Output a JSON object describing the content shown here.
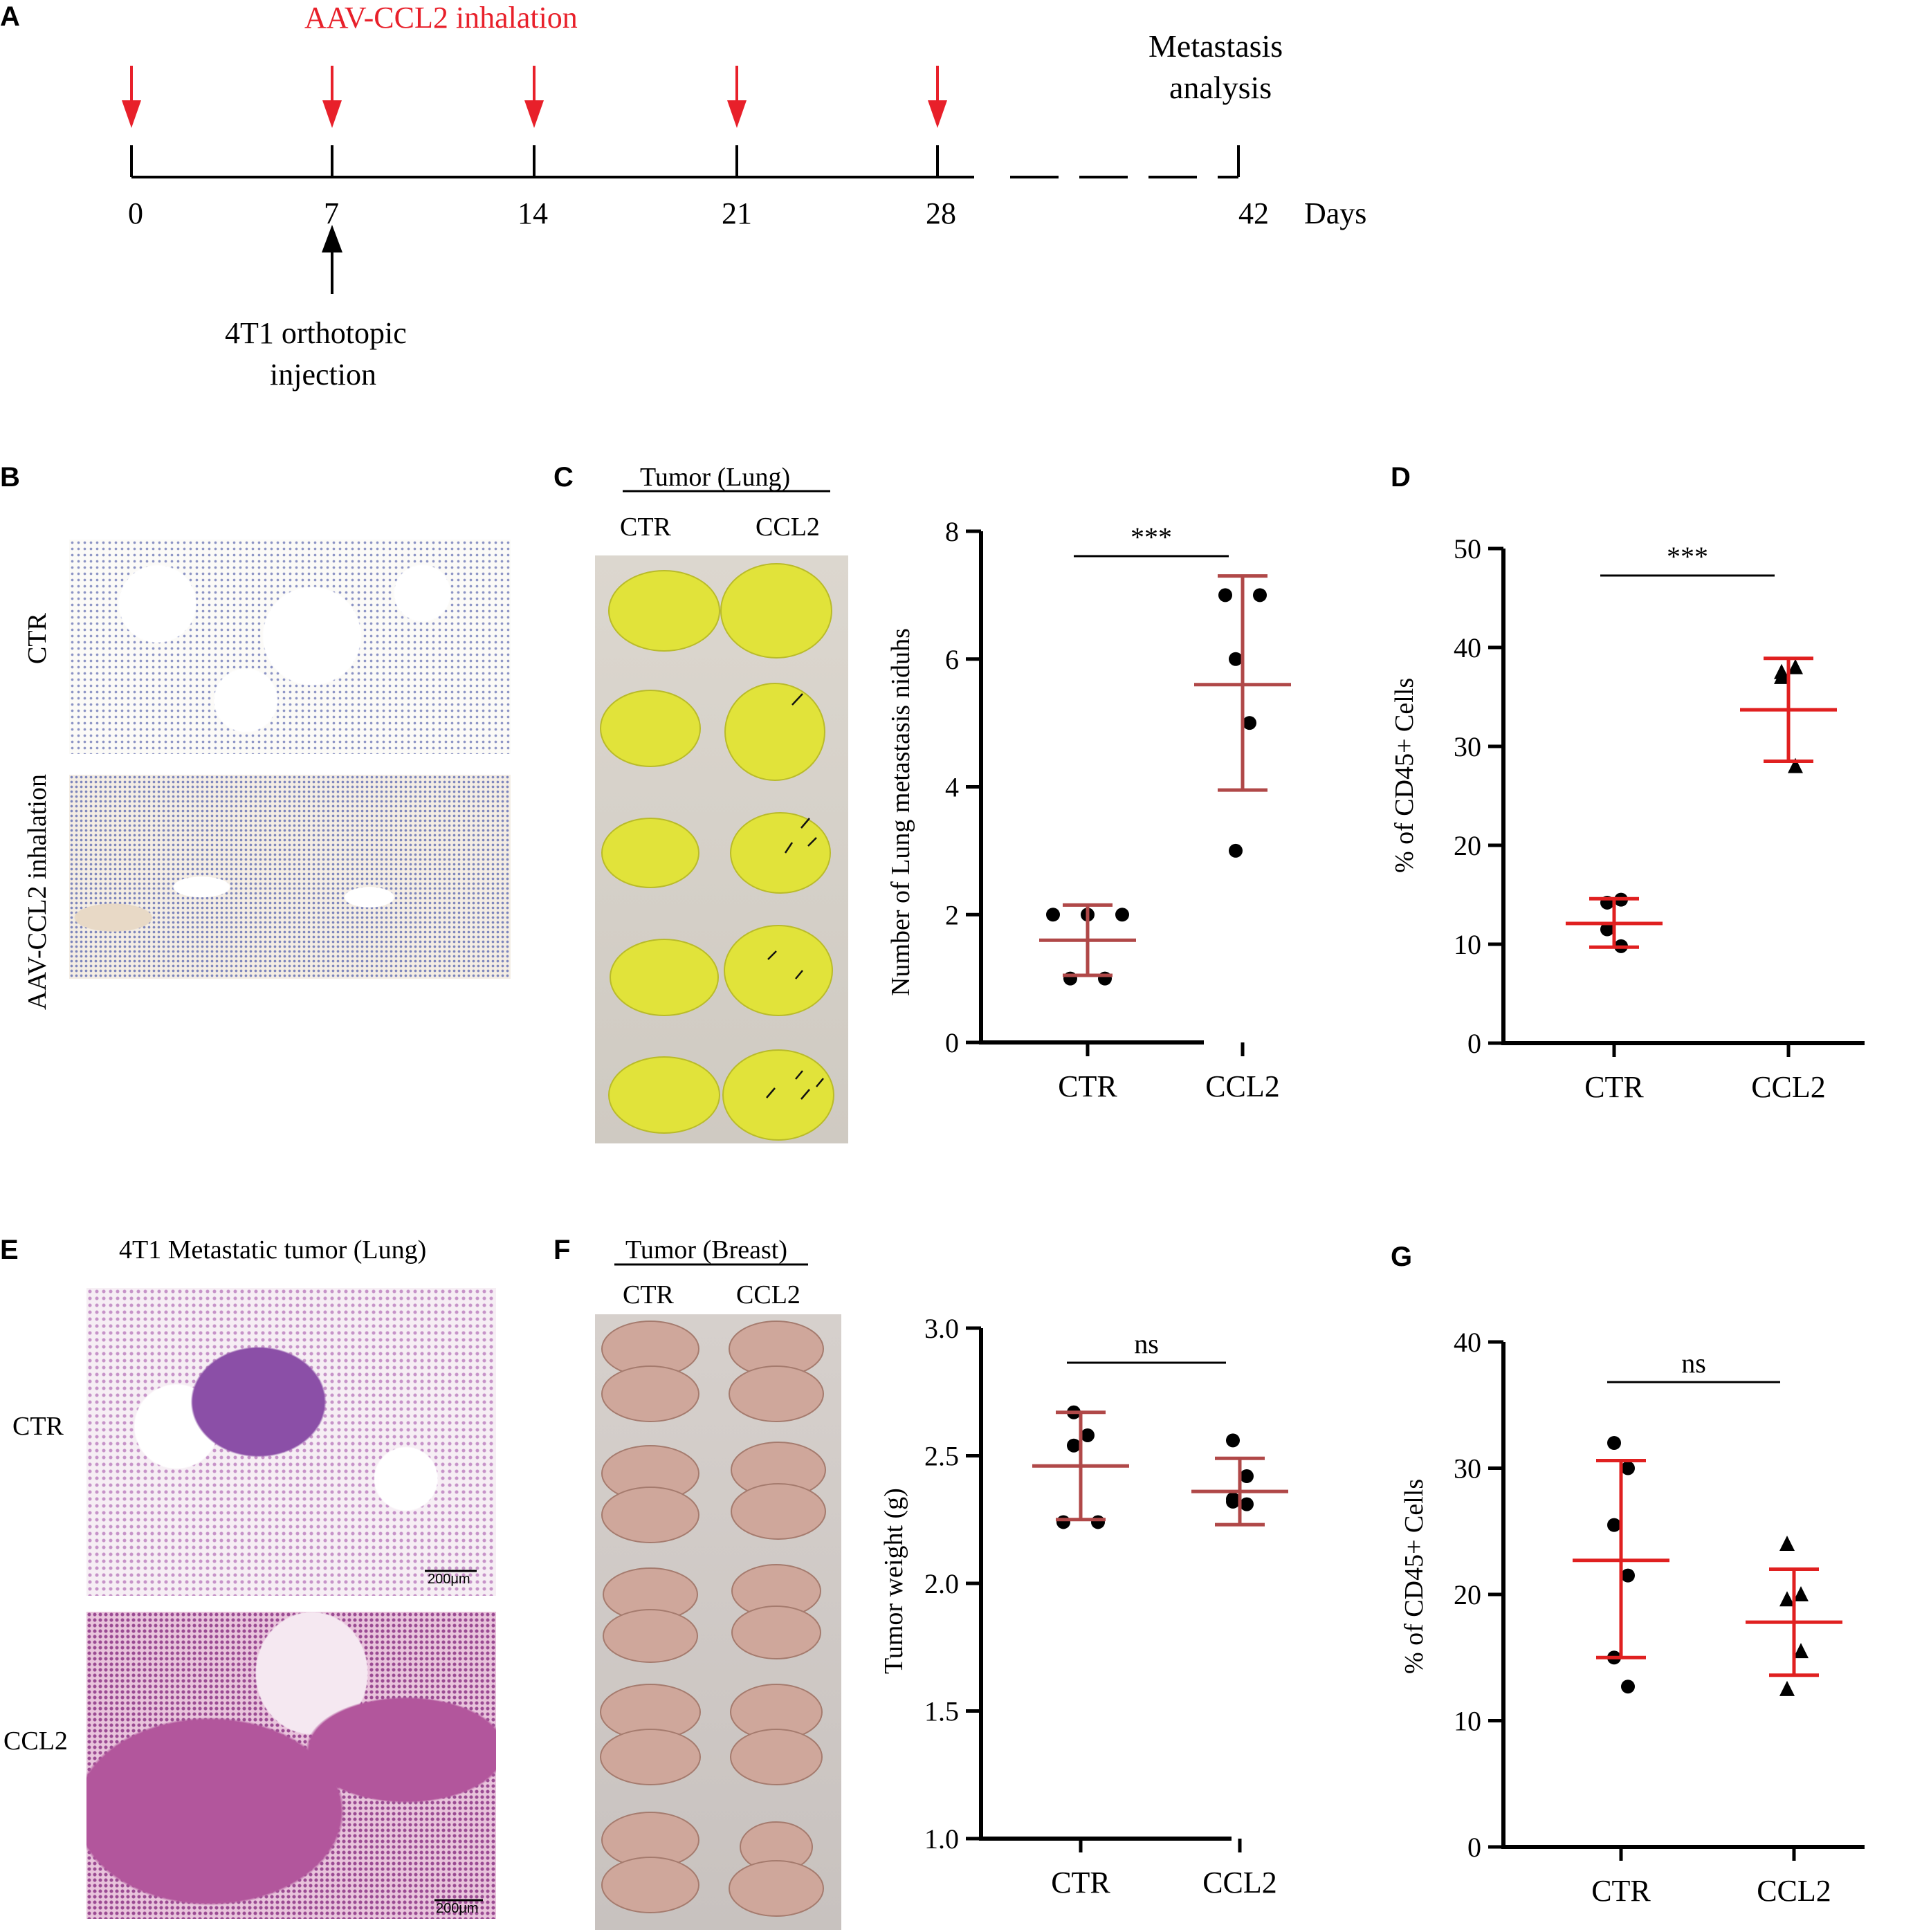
{
  "panelA": {
    "letter": "A",
    "inhalation_label": "AAV-CCL2 inhalation",
    "metastasis_label_line1": "Metastasis",
    "metastasis_label_line2": "analysis",
    "days": [
      "0",
      "7",
      "14",
      "21",
      "28",
      "42"
    ],
    "days_unit": "Days",
    "injection_line1": "4T1 orthotopic",
    "injection_line2": "injection",
    "arrow_color": "#e8202a"
  },
  "panelB": {
    "letter": "B",
    "row1": "CTR",
    "row2": "AAV-CCL2 inhalation"
  },
  "panelC": {
    "letter": "C",
    "photo_title": "Tumor (Lung)",
    "photo_col1": "CTR",
    "photo_col2": "CCL2",
    "chart_data": {
      "type": "scatter",
      "categories": [
        "CTR",
        "CCL2"
      ],
      "ylabel": "Number of Lung metastasis niduhs",
      "ylim": [
        0,
        8
      ],
      "yticks": [
        "0",
        "2",
        "4",
        "6",
        "8"
      ],
      "series": [
        {
          "points": [
            2,
            2,
            2,
            1,
            1
          ],
          "mean": 1.6,
          "sd_low": 1.05,
          "sd_high": 2.15
        },
        {
          "points": [
            7,
            7,
            6,
            5,
            3
          ],
          "mean": 5.6,
          "sd_low": 3.95,
          "sd_high": 7.3
        }
      ],
      "significance": "***",
      "marker": "circle",
      "error_color": "#b04848"
    }
  },
  "panelD": {
    "letter": "D",
    "chart_data": {
      "type": "scatter",
      "categories": [
        "CTR",
        "CCL2"
      ],
      "ylabel": "% of CD45+ Cells",
      "ylim": [
        0,
        50
      ],
      "yticks": [
        "0",
        "10",
        "20",
        "30",
        "40",
        "50"
      ],
      "series": [
        {
          "points": [
            14.2,
            14.5,
            11.5,
            9.8
          ],
          "mean": 12.1,
          "sd_low": 9.7,
          "sd_high": 14.6,
          "marker": "circle"
        },
        {
          "points": [
            37.5,
            38.0,
            37.0,
            28.0
          ],
          "mean": 33.7,
          "sd_low": 28.5,
          "sd_high": 38.9,
          "marker": "triangle"
        }
      ],
      "significance": "***",
      "error_color": "#e02020"
    }
  },
  "panelE": {
    "letter": "E",
    "title": "4T1 Metastatic tumor (Lung)",
    "row1": "CTR",
    "row2": "CCL2",
    "scalebar": "200μm"
  },
  "panelF": {
    "letter": "F",
    "photo_title": "Tumor (Breast)",
    "photo_col1": "CTR",
    "photo_col2": "CCL2",
    "chart_data": {
      "type": "scatter",
      "categories": [
        "CTR",
        "CCL2"
      ],
      "ylabel": "Tumor weight (g)",
      "ylim": [
        1.0,
        3.0
      ],
      "yticks": [
        "1.0",
        "1.5",
        "2.0",
        "2.5",
        "3.0"
      ],
      "series": [
        {
          "points": [
            2.67,
            2.58,
            2.54,
            2.24,
            2.24
          ],
          "mean": 2.46,
          "sd_low": 2.25,
          "sd_high": 2.67
        },
        {
          "points": [
            2.56,
            2.42,
            2.32,
            2.31,
            2.33
          ],
          "mean": 2.36,
          "sd_low": 2.23,
          "sd_high": 2.49
        }
      ],
      "significance": "ns",
      "marker": "circle",
      "error_color": "#b04848"
    }
  },
  "panelG": {
    "letter": "G",
    "chart_data": {
      "type": "scatter",
      "categories": [
        "CTR",
        "CCL2"
      ],
      "ylabel": "% of CD45+ Cells",
      "ylim": [
        0,
        40
      ],
      "yticks": [
        "0",
        "10",
        "20",
        "30",
        "40"
      ],
      "series": [
        {
          "points": [
            32.0,
            30.0,
            25.5,
            21.5,
            15.0,
            12.7
          ],
          "mean": 22.7,
          "sd_low": 15.0,
          "sd_high": 30.6,
          "marker": "circle"
        },
        {
          "points": [
            24.0,
            20.0,
            19.6,
            15.5,
            12.5
          ],
          "mean": 17.8,
          "sd_low": 13.6,
          "sd_high": 22.0,
          "marker": "triangle"
        }
      ],
      "significance": "ns",
      "error_color": "#e02020"
    }
  }
}
